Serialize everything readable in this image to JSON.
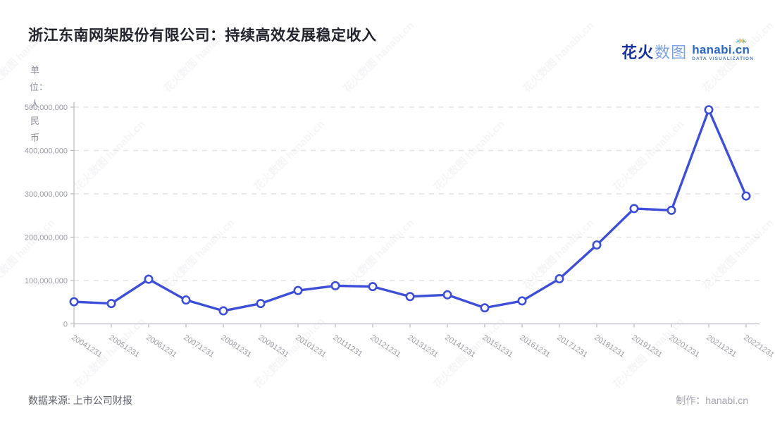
{
  "title": "浙江东南网架股份有限公司：持续高效发展稳定收入",
  "logo": {
    "cn_bold": "花火",
    "cn_light": "数图",
    "en": "hanabi.cn",
    "tagline": "DATA VISUALIZATION",
    "spark_glyph": "✳"
  },
  "watermark_text": "花火数图 hanabi.cn",
  "footer": {
    "source": "数据来源: 上市公司财报",
    "credit": "制作：hanabi.cn"
  },
  "chart_data": {
    "type": "line",
    "title": "浙江东南网架股份有限公司：持续高效发展稳定收入",
    "unit_label": "单位：人民币",
    "categories": [
      "20041231",
      "20051231",
      "20061231",
      "20071231",
      "20081231",
      "20091231",
      "20101231",
      "20111231",
      "20121231",
      "20131231",
      "20141231",
      "20151231",
      "20161231",
      "20171231",
      "20181231",
      "20191231",
      "20201231",
      "20211231",
      "20221231"
    ],
    "values": [
      51000000,
      47000000,
      103000000,
      55000000,
      30000000,
      47000000,
      77000000,
      88000000,
      86000000,
      63000000,
      67000000,
      37000000,
      53000000,
      104000000,
      182000000,
      266000000,
      262000000,
      494000000,
      295000000
    ],
    "ylim": [
      0,
      500000000
    ],
    "yticks": [
      0,
      100000000,
      200000000,
      300000000,
      400000000,
      500000000
    ],
    "grid": "horizontal-dashed",
    "legend": "none",
    "line_color": "#3d4fd8",
    "marker_fill": "#ffffff",
    "axis_color": "#b9bac2",
    "label_color": "#9a9ba5",
    "gridline_color": "#e4e4e9",
    "x_label_rotation_deg": 33
  }
}
